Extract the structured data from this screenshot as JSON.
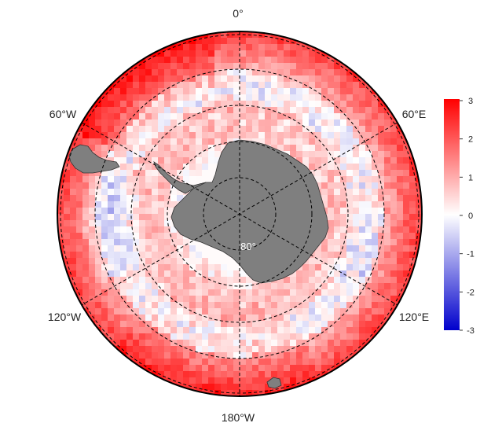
{
  "map": {
    "projection": "south polar stereographic",
    "longitude_labels": {
      "top": "0°",
      "right_upper": "60°E",
      "right_lower": "120°E",
      "bottom": "180°W",
      "left_lower": "120°W",
      "left_upper": "60°W"
    },
    "latitude_label": "80°",
    "land_color": "#7f7f7f"
  },
  "colorbar": {
    "ticks": [
      "3",
      "2",
      "1",
      "0",
      "-1",
      "-2",
      "-3"
    ],
    "min": -3,
    "max": 3,
    "colors": {
      "low": "#0000cc",
      "mid": "#ffffff",
      "high": "#ff0000"
    }
  }
}
